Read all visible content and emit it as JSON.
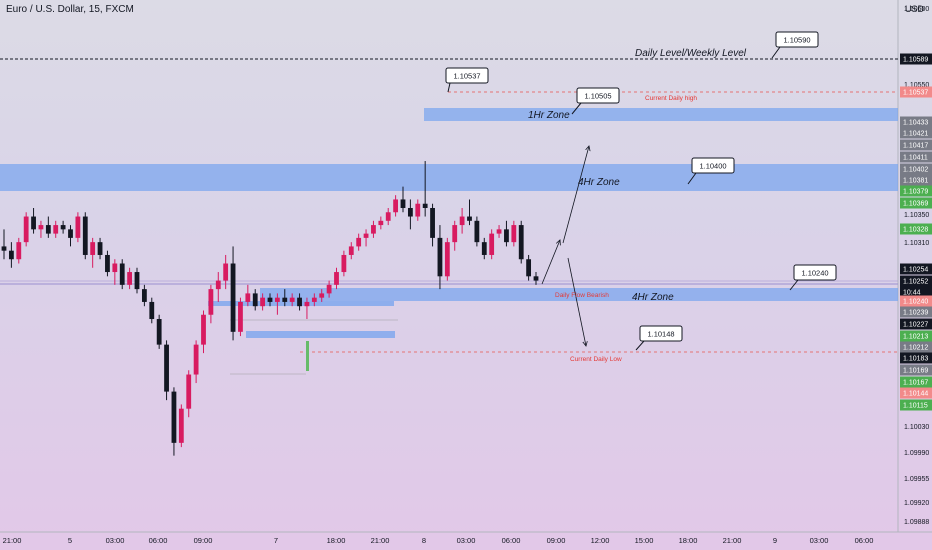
{
  "header": {
    "symbol_title": "Euro / U.S. Dollar, 15, FXCM",
    "currency": "USD"
  },
  "chart_data": {
    "type": "candlestick",
    "title": "Euro / U.S. Dollar, 15, FXCM",
    "ylim": [
      1.0986,
      1.1062
    ],
    "y_ticks": [
      "1.10600",
      "1.10550",
      "1.10350",
      "1.10310",
      "1.10030",
      "1.09990",
      "1.09955",
      "1.09920",
      "1.09888"
    ],
    "x_ticks": [
      "21:00",
      "5",
      "03:00",
      "06:00",
      "09:00",
      "7",
      "18:00",
      "21:00",
      "8",
      "03:00",
      "06:00",
      "09:00",
      "12:00",
      "15:00",
      "18:00",
      "21:00",
      "9",
      "03:00",
      "06:00"
    ],
    "price_badges": [
      {
        "value": "1.10589",
        "color": "#131722"
      },
      {
        "value": "1.10537",
        "color": "#f28a8a"
      },
      {
        "value": "1.10433",
        "color": "#787b86"
      },
      {
        "value": "1.10421",
        "color": "#787b86"
      },
      {
        "value": "1.10417",
        "color": "#787b86"
      },
      {
        "value": "1.10411",
        "color": "#787b86"
      },
      {
        "value": "1.10402",
        "color": "#787b86"
      },
      {
        "value": "1.10381",
        "color": "#787b86"
      },
      {
        "value": "1.10379",
        "color": "#4caf50"
      },
      {
        "value": "1.10369",
        "color": "#4caf50"
      },
      {
        "value": "1.10328",
        "color": "#4caf50"
      },
      {
        "value": "1.10254",
        "color": "#131722"
      },
      {
        "value": "1.10252",
        "color": "#131722"
      },
      {
        "value": "10:44",
        "color": "#131722"
      },
      {
        "value": "1.10240",
        "color": "#f28a8a"
      },
      {
        "value": "1.10239",
        "color": "#787b86"
      },
      {
        "value": "1.10227",
        "color": "#131722"
      },
      {
        "value": "1.10213",
        "color": "#4caf50"
      },
      {
        "value": "1.10212",
        "color": "#787b86"
      },
      {
        "value": "1.10183",
        "color": "#131722"
      },
      {
        "value": "1.10169",
        "color": "#787b86"
      },
      {
        "value": "1.10167",
        "color": "#4caf50"
      },
      {
        "value": "1.10144",
        "color": "#f28a8a"
      },
      {
        "value": "1.10115",
        "color": "#4caf50"
      }
    ],
    "callouts": [
      "1.10537",
      "1.10590",
      "1.10505",
      "1.10400",
      "1.10240",
      "1.10148"
    ],
    "annotations": {
      "daily_weekly": "Daily Level/Weekly Level",
      "current_daily_high": "Current Daily high",
      "zone_1hr": "1Hr Zone",
      "zone_4hr_upper": "4Hr Zone",
      "zone_4hr_lower": "4Hr Zone",
      "daily_bearish": "Daily Flow Bearish",
      "current_daily_low": "Current Daily Low"
    },
    "zones": [
      {
        "name": "1Hr Zone",
        "from": 1.1042,
        "to": 1.10436
      },
      {
        "name": "4Hr Zone",
        "from": 1.10362,
        "to": 1.10398
      },
      {
        "name": "4Hr Zone",
        "from": 1.1023,
        "to": 1.10245
      }
    ],
    "levels": {
      "daily_weekly": 1.10589,
      "current_daily_high": 1.10448,
      "daily_flow": 1.10252,
      "current_daily_low": 1.10183
    },
    "candles": [
      [
        1.1034,
        1.1038,
        1.1031,
        1.1033
      ],
      [
        1.1033,
        1.1035,
        1.1029,
        1.1031
      ],
      [
        1.1031,
        1.1036,
        1.103,
        1.1035
      ],
      [
        1.1035,
        1.1042,
        1.1034,
        1.1041
      ],
      [
        1.1041,
        1.1043,
        1.1037,
        1.1038
      ],
      [
        1.1038,
        1.104,
        1.1036,
        1.1039
      ],
      [
        1.1039,
        1.1041,
        1.1036,
        1.1037
      ],
      [
        1.1037,
        1.104,
        1.1036,
        1.1039
      ],
      [
        1.1039,
        1.104,
        1.1037,
        1.1038
      ],
      [
        1.1038,
        1.1039,
        1.1034,
        1.1036
      ],
      [
        1.1036,
        1.1042,
        1.1035,
        1.1041
      ],
      [
        1.1041,
        1.1042,
        1.1031,
        1.1032
      ],
      [
        1.1032,
        1.1036,
        1.1029,
        1.1035
      ],
      [
        1.1035,
        1.1036,
        1.1031,
        1.1032
      ],
      [
        1.1032,
        1.1033,
        1.1027,
        1.1028
      ],
      [
        1.1028,
        1.1031,
        1.1025,
        1.103
      ],
      [
        1.103,
        1.1031,
        1.1024,
        1.1025
      ],
      [
        1.1025,
        1.1029,
        1.1024,
        1.1028
      ],
      [
        1.1028,
        1.1029,
        1.1023,
        1.1024
      ],
      [
        1.1024,
        1.1025,
        1.102,
        1.1021
      ],
      [
        1.1021,
        1.1022,
        1.1016,
        1.1017
      ],
      [
        1.1017,
        1.1018,
        1.101,
        1.1011
      ],
      [
        1.1011,
        1.1012,
        1.0998,
        1.1
      ],
      [
        1.1,
        1.1001,
        1.0985,
        1.0988
      ],
      [
        1.0988,
        1.0997,
        1.0987,
        1.0996
      ],
      [
        1.0996,
        1.1005,
        1.0994,
        1.1004
      ],
      [
        1.1004,
        1.1012,
        1.1002,
        1.1011
      ],
      [
        1.1011,
        1.1019,
        1.1009,
        1.1018
      ],
      [
        1.1018,
        1.1025,
        1.1016,
        1.1024
      ],
      [
        1.1024,
        1.1028,
        1.1021,
        1.1026
      ],
      [
        1.1026,
        1.1032,
        1.1024,
        1.103
      ],
      [
        1.103,
        1.1034,
        1.1012,
        1.1014
      ],
      [
        1.1014,
        1.1022,
        1.1013,
        1.1021
      ],
      [
        1.1021,
        1.1025,
        1.102,
        1.1023
      ],
      [
        1.1023,
        1.1024,
        1.1019,
        1.102
      ],
      [
        1.102,
        1.1023,
        1.1019,
        1.1022
      ],
      [
        1.1022,
        1.1023,
        1.102,
        1.1021
      ],
      [
        1.1021,
        1.1023,
        1.1018,
        1.1022
      ],
      [
        1.1022,
        1.1024,
        1.102,
        1.1021
      ],
      [
        1.1021,
        1.1023,
        1.102,
        1.1022
      ],
      [
        1.1022,
        1.1023,
        1.1019,
        1.102
      ],
      [
        1.102,
        1.1022,
        1.1017,
        1.1021
      ],
      [
        1.1021,
        1.1023,
        1.102,
        1.1022
      ],
      [
        1.1022,
        1.1024,
        1.1021,
        1.1023
      ],
      [
        1.1023,
        1.1026,
        1.1022,
        1.1025
      ],
      [
        1.1025,
        1.1029,
        1.1024,
        1.1028
      ],
      [
        1.1028,
        1.1033,
        1.1027,
        1.1032
      ],
      [
        1.1032,
        1.1035,
        1.1031,
        1.1034
      ],
      [
        1.1034,
        1.1037,
        1.1033,
        1.1036
      ],
      [
        1.1036,
        1.1038,
        1.1034,
        1.1037
      ],
      [
        1.1037,
        1.104,
        1.1036,
        1.1039
      ],
      [
        1.1039,
        1.1041,
        1.1038,
        1.104
      ],
      [
        1.104,
        1.1043,
        1.1039,
        1.1042
      ],
      [
        1.1042,
        1.1046,
        1.1041,
        1.1045
      ],
      [
        1.1045,
        1.1048,
        1.1042,
        1.1043
      ],
      [
        1.1043,
        1.1045,
        1.1038,
        1.1041
      ],
      [
        1.1041,
        1.1045,
        1.104,
        1.1044
      ],
      [
        1.1044,
        1.1054,
        1.1041,
        1.1043
      ],
      [
        1.1043,
        1.1044,
        1.1034,
        1.1036
      ],
      [
        1.1036,
        1.1039,
        1.1024,
        1.1027
      ],
      [
        1.1027,
        1.1036,
        1.1026,
        1.1035
      ],
      [
        1.1035,
        1.104,
        1.1033,
        1.1039
      ],
      [
        1.1039,
        1.1043,
        1.1037,
        1.1041
      ],
      [
        1.1041,
        1.1045,
        1.1039,
        1.104
      ],
      [
        1.104,
        1.1041,
        1.1034,
        1.1035
      ],
      [
        1.1035,
        1.1036,
        1.1031,
        1.1032
      ],
      [
        1.1032,
        1.1038,
        1.1031,
        1.1037
      ],
      [
        1.1037,
        1.1039,
        1.1036,
        1.1038
      ],
      [
        1.1038,
        1.104,
        1.1034,
        1.1035
      ],
      [
        1.1035,
        1.104,
        1.1034,
        1.1039
      ],
      [
        1.1039,
        1.104,
        1.103,
        1.1031
      ],
      [
        1.1031,
        1.1032,
        1.1026,
        1.1027
      ],
      [
        1.1027,
        1.1028,
        1.1025,
        1.1026
      ]
    ]
  }
}
